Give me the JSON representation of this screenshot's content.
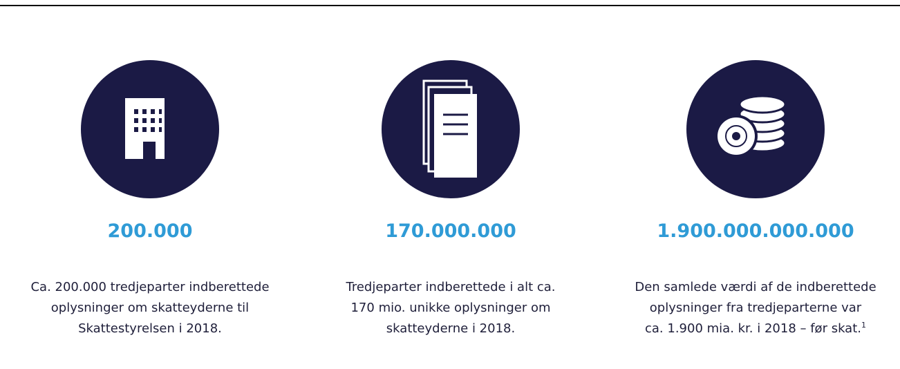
{
  "stats": [
    {
      "value": "200.000",
      "description": [
        "Ca. 200.000 tredjeparter indberettede",
        "oplysninger om skatteyderne til",
        "Skattestyrelsen i 2018."
      ]
    },
    {
      "value": "170.000.000",
      "description": [
        "Tredjeparter indberettede i alt ca.",
        "170 mio. unikke oplysninger om",
        "skatteyderne i 2018."
      ]
    },
    {
      "value": "1.900.000.000.000",
      "description": [
        "Den samlede værdi af de indberettede",
        "oplysninger fra tredjeparterne var",
        "ca. 1.900 mia. kr. i 2018 – før skat."
      ],
      "footnote": "1"
    }
  ]
}
